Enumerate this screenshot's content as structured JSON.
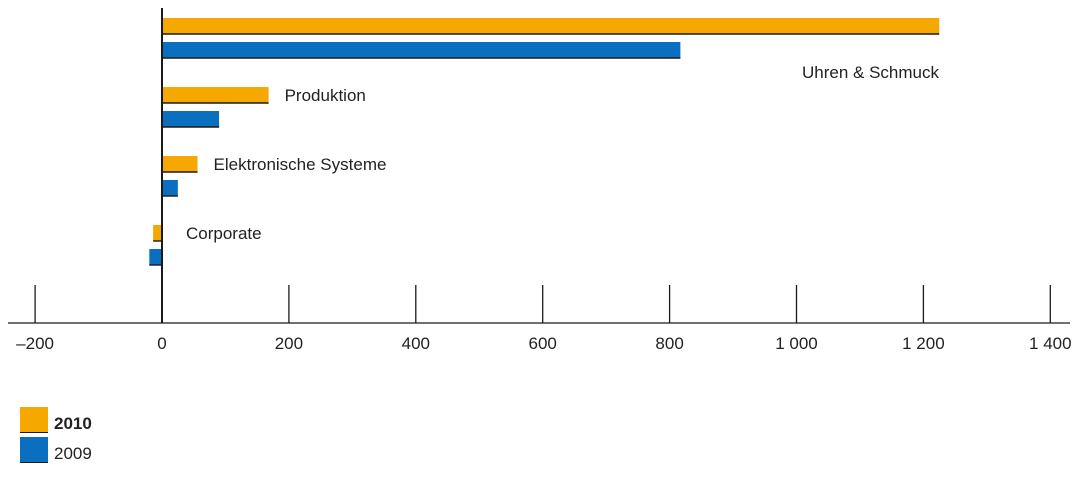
{
  "chart_data": {
    "type": "bar",
    "orientation": "horizontal",
    "categories": [
      "Uhren & Schmuck",
      "Produktion",
      "Elektronische Systeme",
      "Corporate"
    ],
    "series": [
      {
        "name": "2010",
        "values": [
          1225,
          168,
          56,
          -14
        ],
        "color": "#f5a800"
      },
      {
        "name": "2009",
        "values": [
          817,
          90,
          25,
          -20
        ],
        "color": "#0b6fbf"
      }
    ],
    "xlim": [
      -200,
      1400
    ],
    "ticks": [
      -200,
      0,
      200,
      400,
      600,
      800,
      1000,
      1200,
      1400
    ],
    "tick_labels": [
      "–200",
      "0",
      "200",
      "400",
      "600",
      "800",
      "1 000",
      "1 200",
      "1 400"
    ],
    "legend_position": "bottom-left"
  },
  "legend": [
    {
      "label": "2010",
      "color": "#f5a800",
      "bold": true
    },
    {
      "label": "2009",
      "color": "#0b6fbf",
      "bold": false
    }
  ]
}
